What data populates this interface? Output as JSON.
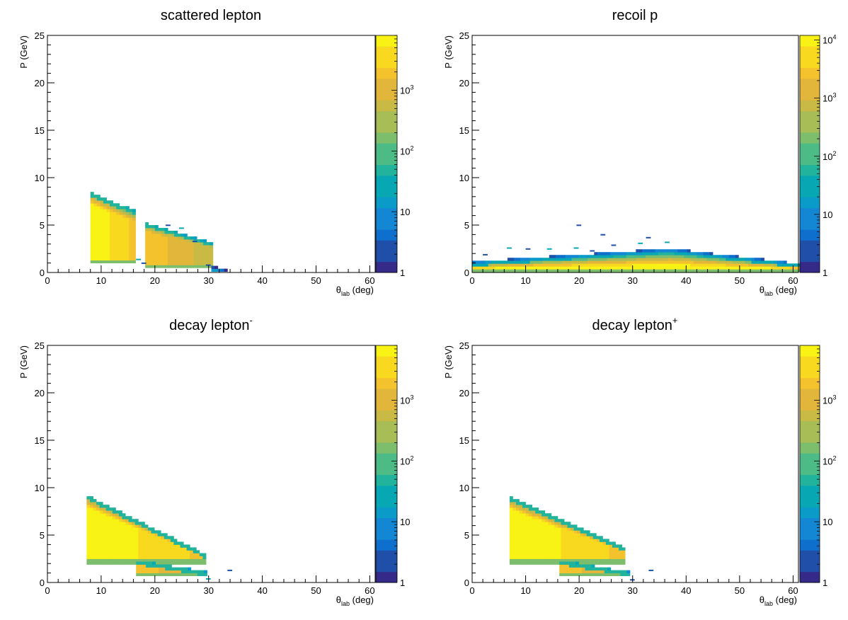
{
  "chart_data": [
    {
      "type": "heatmap",
      "title": "scattered lepton",
      "title_sup": "",
      "xlabel_symbol": "θ",
      "xlabel_sub": "lab",
      "xlabel_unit": "(deg)",
      "ylabel": "P (GeV)",
      "xlim": [
        0,
        61
      ],
      "ylim": [
        0,
        25
      ],
      "x_ticks": [
        0,
        10,
        20,
        30,
        40,
        50,
        60
      ],
      "y_ticks": [
        0,
        5,
        10,
        15,
        20,
        25
      ],
      "colorbar": {
        "scale": "log",
        "range": [
          1,
          8000
        ],
        "tick_labels": [
          {
            "value": 1,
            "base": "1",
            "exp": ""
          },
          {
            "value": 10,
            "base": "10",
            "exp": ""
          },
          {
            "value": 100,
            "base": "10",
            "exp": "2"
          },
          {
            "value": 1000,
            "base": "10",
            "exp": "3"
          }
        ]
      },
      "regions": [
        {
          "theta": [
            8,
            16.3
          ],
          "p_min": 1.0,
          "p_max_at_start": 8.3,
          "p_max_at_end": 6.3,
          "peak_log": 3.9
        },
        {
          "theta": [
            18.2,
            30.5
          ],
          "p_min": 0.5,
          "p_max_at_start": 5.1,
          "p_max_at_end": 3.0,
          "peak_log": 3.3
        },
        {
          "theta": [
            30.5,
            33
          ],
          "p_min": 0.1,
          "p_max_at_start": 0.5,
          "p_max_at_end": 0.2,
          "peak_log": 1.2
        }
      ],
      "sparse_points": [
        [
          24.5,
          4.6
        ],
        [
          22,
          4.9
        ],
        [
          27,
          3.2
        ],
        [
          16.5,
          1.3
        ],
        [
          17.5,
          0.9
        ],
        [
          29.5,
          0.7
        ]
      ]
    },
    {
      "type": "heatmap",
      "title": "recoil p",
      "title_sup": "",
      "xlabel_symbol": "θ",
      "xlabel_sub": "lab",
      "xlabel_unit": "(deg)",
      "ylabel": "P (GeV)",
      "xlim": [
        0,
        61
      ],
      "ylim": [
        0,
        25
      ],
      "x_ticks": [
        0,
        10,
        20,
        30,
        40,
        50,
        60
      ],
      "y_ticks": [
        0,
        5,
        10,
        15,
        20,
        25
      ],
      "colorbar": {
        "scale": "log",
        "range": [
          1,
          12000
        ],
        "tick_labels": [
          {
            "value": 1,
            "base": "1",
            "exp": ""
          },
          {
            "value": 10,
            "base": "10",
            "exp": ""
          },
          {
            "value": 100,
            "base": "10",
            "exp": "2"
          },
          {
            "value": 1000,
            "base": "10",
            "exp": "3"
          },
          {
            "value": 10000,
            "base": "10",
            "exp": "4"
          }
        ]
      },
      "regions": [
        {
          "theta": [
            0,
            61
          ],
          "band": true,
          "p_min": 0.05,
          "p_max_at_start": 1.0,
          "p_max_at_mid": 2.4,
          "p_max_at_end": 0.8,
          "peak_log": 4.0
        }
      ],
      "sparse_points": [
        [
          19.5,
          4.9
        ],
        [
          24,
          3.9
        ],
        [
          32.5,
          3.6
        ],
        [
          6.5,
          2.5
        ],
        [
          10,
          2.4
        ],
        [
          14,
          2.4
        ],
        [
          19,
          2.5
        ],
        [
          26,
          2.8
        ],
        [
          31,
          3.0
        ],
        [
          36,
          3.1
        ],
        [
          2,
          1.8
        ],
        [
          22,
          2.2
        ]
      ]
    },
    {
      "type": "heatmap",
      "title": "decay lepton",
      "title_sup": "-",
      "xlabel_symbol": "θ",
      "xlabel_sub": "lab",
      "xlabel_unit": "(deg)",
      "ylabel": "P (GeV)",
      "xlim": [
        0,
        61
      ],
      "ylim": [
        0,
        25
      ],
      "x_ticks": [
        0,
        10,
        20,
        30,
        40,
        50,
        60
      ],
      "y_ticks": [
        0,
        5,
        10,
        15,
        20,
        25
      ],
      "colorbar": {
        "scale": "log",
        "range": [
          1,
          8000
        ],
        "tick_labels": [
          {
            "value": 1,
            "base": "1",
            "exp": ""
          },
          {
            "value": 10,
            "base": "10",
            "exp": ""
          },
          {
            "value": 100,
            "base": "10",
            "exp": "2"
          },
          {
            "value": 1000,
            "base": "10",
            "exp": "3"
          }
        ]
      },
      "regions": [
        {
          "theta": [
            7.3,
            29
          ],
          "p_min": 1.9,
          "p_max_at_start": 9.0,
          "p_max_at_end": 2.9,
          "peak_log": 3.9
        },
        {
          "theta": [
            16.5,
            29.5
          ],
          "p_min": 0.7,
          "p_max_at_start": 2.2,
          "p_max_at_end": 1.0,
          "peak_log": 3.3
        }
      ],
      "sparse_points": [
        [
          33.5,
          1.2
        ],
        [
          29.5,
          0.3
        ]
      ]
    },
    {
      "type": "heatmap",
      "title": "decay lepton",
      "title_sup": "+",
      "xlabel_symbol": "θ",
      "xlabel_sub": "lab",
      "xlabel_unit": "(deg)",
      "ylabel": "P (GeV)",
      "xlim": [
        0,
        61
      ],
      "ylim": [
        0,
        25
      ],
      "x_ticks": [
        0,
        10,
        20,
        30,
        40,
        50,
        60
      ],
      "y_ticks": [
        0,
        5,
        10,
        15,
        20,
        25
      ],
      "colorbar": {
        "scale": "log",
        "range": [
          1,
          8000
        ],
        "tick_labels": [
          {
            "value": 1,
            "base": "1",
            "exp": ""
          },
          {
            "value": 10,
            "base": "10",
            "exp": ""
          },
          {
            "value": 100,
            "base": "10",
            "exp": "2"
          },
          {
            "value": 1000,
            "base": "10",
            "exp": "3"
          }
        ]
      },
      "regions": [
        {
          "theta": [
            7.0,
            28.5
          ],
          "p_min": 1.9,
          "p_max_at_start": 8.8,
          "p_max_at_end": 3.5,
          "peak_log": 3.9
        },
        {
          "theta": [
            16.3,
            29
          ],
          "p_min": 0.7,
          "p_max_at_start": 2.2,
          "p_max_at_end": 1.0,
          "peak_log": 3.3
        }
      ],
      "sparse_points": [
        [
          33,
          1.2
        ],
        [
          29.5,
          0.2
        ]
      ]
    }
  ]
}
